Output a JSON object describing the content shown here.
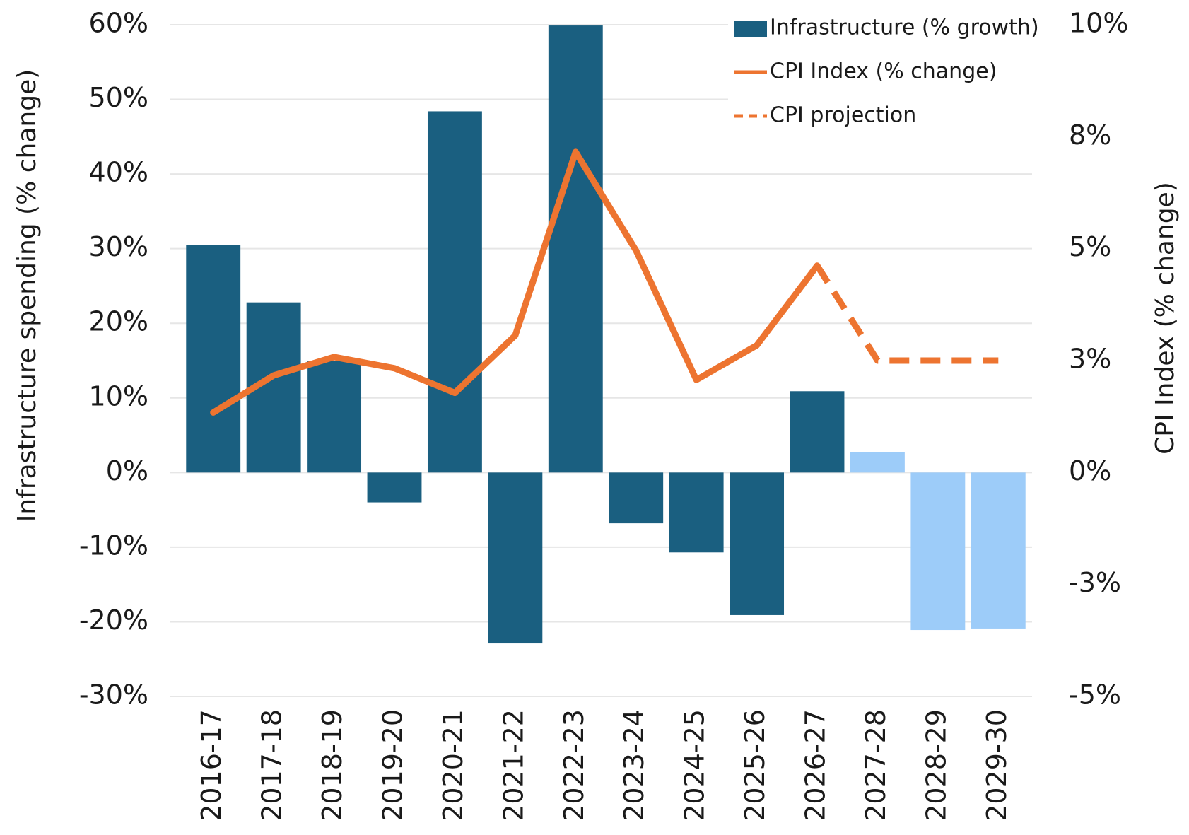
{
  "chart_data": {
    "type": "bar-line",
    "categories": [
      "2016-17",
      "2017-18",
      "2018-19",
      "2019-20",
      "2020-21",
      "2021-22",
      "2022-23",
      "2023-24",
      "2024-25",
      "2025-26",
      "2026-27",
      "2027-28",
      "2028-29",
      "2029-30"
    ],
    "series": [
      {
        "name": "Infrastructure (% growth)",
        "type": "bar",
        "color": "#1a5f80",
        "colors": [
          "#1a5f80",
          "#1a5f80",
          "#1a5f80",
          "#1a5f80",
          "#1a5f80",
          "#1a5f80",
          "#1a5f80",
          "#1a5f80",
          "#1a5f80",
          "#1a5f80",
          "#1a5f80",
          "#9dccf9",
          "#9dccf9",
          "#9dccf9"
        ],
        "values": [
          30.5,
          22.8,
          15,
          -4,
          48.4,
          -22.9,
          59.9,
          -6.8,
          -10.7,
          -19.1,
          10.9,
          2.7,
          -21.1,
          -20.9
        ]
      },
      {
        "name": "CPI Index (% change)",
        "type": "line",
        "axis": "y2",
        "color": "#ed7430",
        "dashed": false,
        "values": [
          1.34,
          2.17,
          2.58,
          2.33,
          1.78,
          3.06,
          7.16,
          4.96,
          2.07,
          2.84,
          4.62,
          null,
          null,
          null
        ]
      },
      {
        "name": "CPI projection",
        "type": "line",
        "axis": "y2",
        "color": "#ed7430",
        "dashed": true,
        "values": [
          null,
          null,
          null,
          null,
          null,
          null,
          null,
          null,
          null,
          null,
          4.62,
          2.5,
          2.5,
          2.5
        ]
      }
    ],
    "y_label": "Infrastructure spending (% change)",
    "y2_label": "CPI Index (% change)",
    "ylim": [
      -30,
      60
    ],
    "yticks": [
      {
        "value": -30,
        "label": "-30%"
      },
      {
        "value": -20,
        "label": "-20%"
      },
      {
        "value": -10,
        "label": "-10%"
      },
      {
        "value": 0,
        "label": "0%"
      },
      {
        "value": 10,
        "label": "10%"
      },
      {
        "value": 20,
        "label": "20%"
      },
      {
        "value": 30,
        "label": "30%"
      },
      {
        "value": 40,
        "label": "40%"
      },
      {
        "value": 50,
        "label": "50%"
      },
      {
        "value": 60,
        "label": "60%"
      }
    ],
    "y2lim": [
      -5,
      10
    ],
    "y2ticks": [
      {
        "value": -5,
        "label": "-5%"
      },
      {
        "value": -2.5,
        "label": "-3%"
      },
      {
        "value": 0,
        "label": "0%"
      },
      {
        "value": 2.5,
        "label": "3%"
      },
      {
        "value": 5,
        "label": "5%"
      },
      {
        "value": 7.5,
        "label": "8%"
      },
      {
        "value": 10,
        "label": "10%"
      }
    ],
    "grid": true,
    "legend": "top-right"
  }
}
